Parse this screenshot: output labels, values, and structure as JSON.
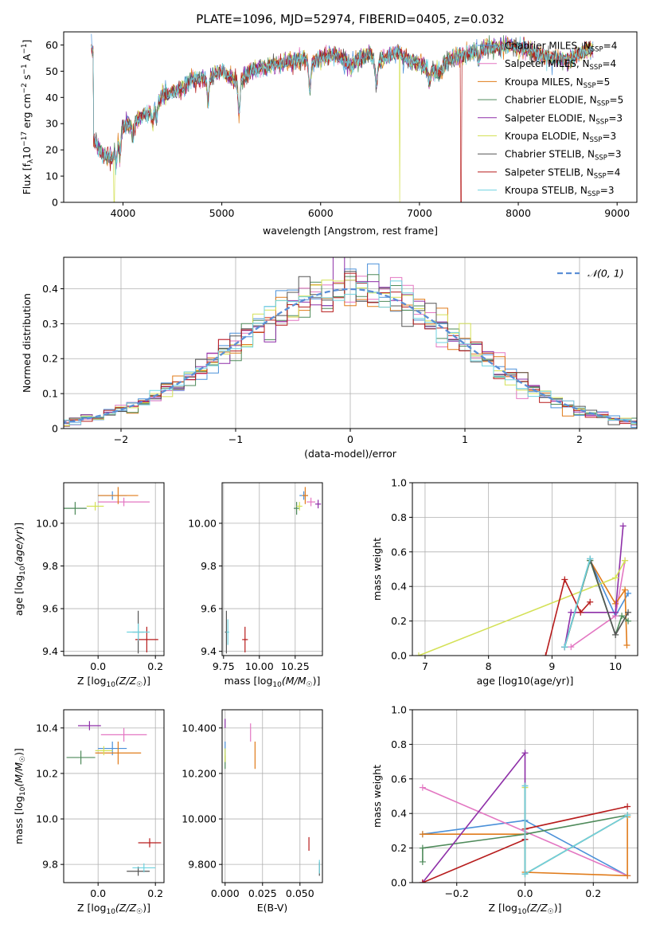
{
  "title": "PLATE=1096, MJD=52974, FIBERID=0405, z=0.032",
  "colors": {
    "Chabrier MILES": "#4a90d9",
    "Salpeter MILES": "#e377c2",
    "Kroupa MILES": "#e07b1a",
    "Chabrier ELODIE": "#4e8a5a",
    "Salpeter ELODIE": "#8e2fa8",
    "Kroupa ELODIE": "#d4e157",
    "Chabrier STELIB": "#555555",
    "Salpeter STELIB": "#b71c1c",
    "Kroupa STELIB": "#6fd3e0",
    "gaussian": "#5b8fd6"
  },
  "chart_data": [
    {
      "id": "spectrum",
      "type": "line",
      "xlabel": "wavelength [Angstrom, rest frame]",
      "ylabel": "Flux [f_λ 10^-17 erg cm^-2 s^-1 A^-1]",
      "xlim": [
        3400,
        9200
      ],
      "ylim": [
        0,
        65
      ],
      "xticks": [
        4000,
        5000,
        6000,
        7000,
        8000,
        9000
      ],
      "yticks": [
        0,
        10,
        20,
        30,
        40,
        50,
        60
      ],
      "grid": false,
      "legend_position": "right",
      "legend": [
        {
          "name": "Chabrier MILES",
          "nssp": 4
        },
        {
          "name": "Salpeter MILES",
          "nssp": 4
        },
        {
          "name": "Kroupa MILES",
          "nssp": 5
        },
        {
          "name": "Chabrier ELODIE",
          "nssp": 5
        },
        {
          "name": "Salpeter ELODIE",
          "nssp": 3
        },
        {
          "name": "Kroupa ELODIE",
          "nssp": 3
        },
        {
          "name": "Chabrier STELIB",
          "nssp": 3
        },
        {
          "name": "Salpeter STELIB",
          "nssp": 4
        },
        {
          "name": "Kroupa STELIB",
          "nssp": 3
        }
      ],
      "envelope": {
        "x": [
          3700,
          3800,
          3900,
          3950,
          4000,
          4100,
          4200,
          4300,
          4400,
          4500,
          4600,
          4700,
          4800,
          4900,
          5000,
          5100,
          5175,
          5300,
          5400,
          5500,
          5600,
          5700,
          5800,
          5900,
          6000,
          6100,
          6200,
          6300,
          6400,
          6500,
          6563,
          6600,
          6700,
          6800,
          6900,
          7000,
          7100,
          7200,
          7300,
          7400,
          7500,
          7600,
          7700,
          7800,
          7900,
          8000,
          8100,
          8200,
          8300,
          8400,
          8500,
          8600,
          8700
        ],
        "y": [
          24,
          18,
          17,
          25,
          29,
          30,
          33,
          35,
          41,
          42,
          43,
          47,
          47,
          48,
          50,
          47,
          46,
          50,
          51,
          52,
          53,
          54,
          55,
          53,
          55,
          56,
          56,
          52,
          55,
          57,
          52,
          54,
          56,
          57,
          54,
          53,
          51,
          49,
          55,
          56,
          57,
          58,
          59,
          59,
          60,
          59,
          58,
          56,
          55,
          55,
          54,
          56,
          58
        ]
      },
      "dropouts": [
        {
          "series": "Kroupa ELODIE",
          "x": 6800
        },
        {
          "series": "Salpeter STELIB",
          "x": 7420
        },
        {
          "series": "Kroupa ELODIE",
          "x": 3910
        }
      ]
    },
    {
      "id": "residuals",
      "type": "histogram",
      "xlabel": "(data-model)/error",
      "ylabel": "Normed distribution",
      "xlim": [
        -2.5,
        2.5
      ],
      "ylim": [
        0,
        0.49
      ],
      "xticks": [
        -2,
        -1,
        0,
        1,
        2
      ],
      "yticks": [
        0.0,
        0.1,
        0.2,
        0.3,
        0.4
      ],
      "grid": true,
      "legend_position": "top-right",
      "legend": [
        "𝒩(0, 1)"
      ],
      "bin_width": 0.1
    },
    {
      "id": "age-vs-Z",
      "type": "scatter",
      "xlabel": "Z [log10(Z/Z☉)]",
      "ylabel": "age [log10(age/yr)]",
      "xlim": [
        -0.12,
        0.23
      ],
      "ylim": [
        9.38,
        10.19
      ],
      "xticks": [
        0.0,
        0.2
      ],
      "yticks": [
        9.4,
        9.6,
        9.8,
        10.0
      ],
      "grid": true,
      "points": [
        {
          "series": "Chabrier MILES",
          "x": 0.05,
          "y": 10.13,
          "xerr": 0.05,
          "yerr": 0.02
        },
        {
          "series": "Salpeter MILES",
          "x": 0.09,
          "y": 10.1,
          "xerr": 0.09,
          "yerr": 0.02
        },
        {
          "series": "Kroupa MILES",
          "x": 0.07,
          "y": 10.13,
          "xerr": 0.07,
          "yerr": 0.04
        },
        {
          "series": "Chabrier ELODIE",
          "x": -0.08,
          "y": 10.07,
          "xerr": 0.04,
          "yerr": 0.03
        },
        {
          "series": "Kroupa ELODIE",
          "x": -0.01,
          "y": 10.08,
          "xerr": 0.03,
          "yerr": 0.02
        },
        {
          "series": "Chabrier STELIB",
          "x": 0.14,
          "y": 9.49,
          "xerr": 0.02,
          "yerr": 0.1
        },
        {
          "series": "Salpeter STELIB",
          "x": 0.17,
          "y": 9.455,
          "xerr": 0.04,
          "yerr": 0.06
        },
        {
          "series": "Kroupa STELIB",
          "x": 0.14,
          "y": 9.49,
          "xerr": 0.04,
          "yerr": 0.04
        }
      ]
    },
    {
      "id": "age-vs-mass",
      "type": "scatter",
      "xlabel": "mass [log10(M/M☉)]",
      "ylabel": "",
      "xlim": [
        9.74,
        10.44
      ],
      "ylim": [
        9.38,
        10.19
      ],
      "xticks": [
        9.75,
        10.0,
        10.25
      ],
      "yticks": [
        9.4,
        9.6,
        9.8,
        10.0
      ],
      "grid": true,
      "points": [
        {
          "series": "Chabrier MILES",
          "x": 10.31,
          "y": 10.13,
          "xerr": 0.03,
          "yerr": 0.02
        },
        {
          "series": "Salpeter MILES",
          "x": 10.36,
          "y": 10.1,
          "xerr": 0.03,
          "yerr": 0.02
        },
        {
          "series": "Kroupa MILES",
          "x": 10.32,
          "y": 10.13,
          "xerr": 0.02,
          "yerr": 0.04
        },
        {
          "series": "Chabrier ELODIE",
          "x": 10.26,
          "y": 10.07,
          "xerr": 0.02,
          "yerr": 0.03
        },
        {
          "series": "Salpeter ELODIE",
          "x": 10.41,
          "y": 10.09,
          "xerr": 0.02,
          "yerr": 0.02
        },
        {
          "series": "Kroupa ELODIE",
          "x": 10.28,
          "y": 10.08,
          "xerr": 0.02,
          "yerr": 0.02
        },
        {
          "series": "Chabrier STELIB",
          "x": 9.77,
          "y": 9.49,
          "xerr": 0.01,
          "yerr": 0.1
        },
        {
          "series": "Salpeter STELIB",
          "x": 9.9,
          "y": 9.455,
          "xerr": 0.02,
          "yerr": 0.06
        },
        {
          "series": "Kroupa STELIB",
          "x": 9.78,
          "y": 9.49,
          "xerr": 0.01,
          "yerr": 0.06
        }
      ]
    },
    {
      "id": "weight-vs-age",
      "type": "line",
      "xlabel": "age [log10(age/yr)]",
      "ylabel": "mass weight",
      "xlim": [
        6.8,
        10.35
      ],
      "ylim": [
        0,
        1
      ],
      "xticks": [
        7,
        8,
        9,
        10
      ],
      "yticks": [
        0.0,
        0.2,
        0.4,
        0.6,
        0.8,
        1.0
      ],
      "grid": true,
      "series": [
        {
          "name": "Chabrier MILES",
          "x": [
            9.2,
            9.6,
            10.0,
            10.2
          ],
          "y": [
            0.05,
            0.55,
            0.23,
            0.36
          ]
        },
        {
          "name": "Salpeter MILES",
          "x": [
            9.3,
            10.0,
            10.15
          ],
          "y": [
            0.05,
            0.23,
            0.55
          ]
        },
        {
          "name": "Kroupa MILES",
          "x": [
            9.2,
            9.6,
            10.0,
            10.15,
            10.18
          ],
          "y": [
            0.05,
            0.55,
            0.3,
            0.38,
            0.06
          ]
        },
        {
          "name": "Chabrier ELODIE",
          "x": [
            9.2,
            9.6,
            10.0,
            10.1,
            10.2
          ],
          "y": [
            0.05,
            0.55,
            0.12,
            0.23,
            0.2
          ]
        },
        {
          "name": "Salpeter ELODIE",
          "x": [
            9.2,
            9.3,
            10.0,
            10.12
          ],
          "y": [
            0.05,
            0.25,
            0.25,
            0.75
          ]
        },
        {
          "name": "Kroupa ELODIE",
          "x": [
            6.9,
            10.0,
            10.15
          ],
          "y": [
            0.0,
            0.45,
            0.55
          ]
        },
        {
          "name": "Chabrier STELIB",
          "x": [
            9.2,
            9.6,
            10.0,
            10.2
          ],
          "y": [
            0.05,
            0.56,
            0.12,
            0.25
          ]
        },
        {
          "name": "Salpeter STELIB",
          "x": [
            8.9,
            9.2,
            9.45,
            9.6
          ],
          "y": [
            0.0,
            0.44,
            0.25,
            0.31
          ]
        },
        {
          "name": "Kroupa STELIB",
          "x": [
            9.2,
            9.6
          ],
          "y": [
            0.05,
            0.56
          ]
        }
      ]
    },
    {
      "id": "mass-vs-Z",
      "type": "scatter",
      "xlabel": "Z [log10(Z/Z☉)]",
      "ylabel": "mass [log10(M/M☉)]",
      "xlim": [
        -0.12,
        0.23
      ],
      "ylim": [
        9.72,
        10.48
      ],
      "xticks": [
        0.0,
        0.2
      ],
      "yticks": [
        9.8,
        10.0,
        10.2,
        10.4
      ],
      "grid": true,
      "points": [
        {
          "series": "Chabrier MILES",
          "x": 0.05,
          "y": 10.31,
          "xerr": 0.05,
          "yerr": 0.03
        },
        {
          "series": "Salpeter MILES",
          "x": 0.09,
          "y": 10.37,
          "xerr": 0.08,
          "yerr": 0.03
        },
        {
          "series": "Kroupa MILES",
          "x": 0.07,
          "y": 10.29,
          "xerr": 0.08,
          "yerr": 0.05
        },
        {
          "series": "Chabrier ELODIE",
          "x": -0.06,
          "y": 10.27,
          "xerr": 0.05,
          "yerr": 0.03
        },
        {
          "series": "Salpeter ELODIE",
          "x": -0.03,
          "y": 10.41,
          "xerr": 0.04,
          "yerr": 0.02
        },
        {
          "series": "Kroupa ELODIE",
          "x": 0.02,
          "y": 10.3,
          "xerr": 0.03,
          "yerr": 0.02
        },
        {
          "series": "Chabrier STELIB",
          "x": 0.14,
          "y": 9.77,
          "xerr": 0.04,
          "yerr": 0.02
        },
        {
          "series": "Salpeter STELIB",
          "x": 0.18,
          "y": 9.895,
          "xerr": 0.04,
          "yerr": 0.02
        },
        {
          "series": "Kroupa STELIB",
          "x": 0.16,
          "y": 9.785,
          "xerr": 0.04,
          "yerr": 0.02
        }
      ]
    },
    {
      "id": "mass-vs-ebv",
      "type": "scatter",
      "xlabel": "E(B-V)",
      "ylabel": "",
      "xlim": [
        -0.002,
        0.065
      ],
      "ylim": [
        9.72,
        10.48
      ],
      "xticks": [
        0.0,
        0.025,
        0.05
      ],
      "yticks": [
        9.8,
        10.0,
        10.2,
        10.4
      ],
      "grid": true,
      "points": [
        {
          "series": "Chabrier MILES",
          "x": 0.0,
          "y": 10.31,
          "xerr": 0,
          "yerr": 0.03
        },
        {
          "series": "Salpeter MILES",
          "x": 0.017,
          "y": 10.38,
          "xerr": 0,
          "yerr": 0.04
        },
        {
          "series": "Kroupa MILES",
          "x": 0.02,
          "y": 10.28,
          "xerr": 0,
          "yerr": 0.06
        },
        {
          "series": "Chabrier ELODIE",
          "x": 0.0,
          "y": 10.25,
          "xerr": 0,
          "yerr": 0.03
        },
        {
          "series": "Salpeter ELODIE",
          "x": 0.0,
          "y": 10.42,
          "xerr": 0,
          "yerr": 0.02
        },
        {
          "series": "Kroupa ELODIE",
          "x": 0.0,
          "y": 10.28,
          "xerr": 0,
          "yerr": 0.03
        },
        {
          "series": "Chabrier STELIB",
          "x": 0.063,
          "y": 9.78,
          "xerr": 0,
          "yerr": 0.03
        },
        {
          "series": "Salpeter STELIB",
          "x": 0.056,
          "y": 9.89,
          "xerr": 0,
          "yerr": 0.03
        },
        {
          "series": "Kroupa STELIB",
          "x": 0.063,
          "y": 9.79,
          "xerr": 0,
          "yerr": 0.03
        }
      ]
    },
    {
      "id": "weight-vs-Z",
      "type": "line",
      "xlabel": "Z [log10(Z/Z☉)]",
      "ylabel": "mass weight",
      "xlim": [
        -0.33,
        0.33
      ],
      "ylim": [
        0,
        1
      ],
      "xticks": [
        -0.2,
        0.0,
        0.2
      ],
      "yticks": [
        0.0,
        0.2,
        0.4,
        0.6,
        0.8,
        1.0
      ],
      "grid": true,
      "series": [
        {
          "name": "Chabrier MILES",
          "x": [
            -0.3,
            0.0,
            0.3
          ],
          "y": [
            0.28,
            0.36,
            0.04
          ]
        },
        {
          "name": "Salpeter MILES",
          "x": [
            -0.3,
            0.3
          ],
          "y": [
            0.55,
            0.04
          ]
        },
        {
          "name": "Kroupa MILES",
          "x": [
            -0.3,
            0.0,
            0.0,
            0.3,
            0.3
          ],
          "y": [
            0.28,
            0.28,
            0.06,
            0.04,
            0.38
          ]
        },
        {
          "name": "Chabrier ELODIE",
          "x": [
            -0.3,
            -0.3,
            0.0,
            0.3
          ],
          "y": [
            0.12,
            0.2,
            0.28,
            0.39
          ]
        },
        {
          "name": "Salpeter ELODIE",
          "x": [
            -0.3,
            0.0,
            0.0
          ],
          "y": [
            0.0,
            0.75,
            0.25
          ]
        },
        {
          "name": "Kroupa ELODIE",
          "x": [
            0.0,
            0.0,
            0.3
          ],
          "y": [
            0.55,
            0.05,
            0.39
          ]
        },
        {
          "name": "Chabrier STELIB",
          "x": [
            0.0,
            0.0,
            0.3
          ],
          "y": [
            0.56,
            0.05,
            0.39
          ]
        },
        {
          "name": "Salpeter STELIB",
          "x": [
            -0.3,
            0.0,
            0.0,
            0.3
          ],
          "y": [
            0.0,
            0.25,
            0.31,
            0.44
          ]
        },
        {
          "name": "Kroupa STELIB",
          "x": [
            0.0,
            0.0,
            0.3
          ],
          "y": [
            0.56,
            0.05,
            0.39
          ]
        }
      ]
    }
  ]
}
